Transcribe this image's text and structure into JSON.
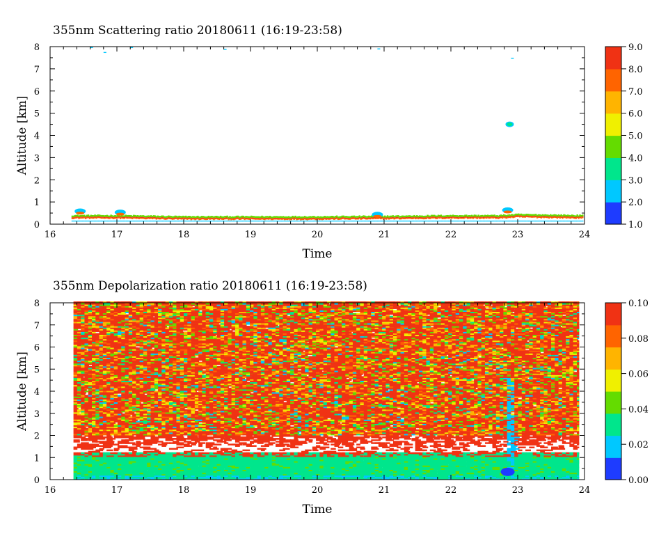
{
  "chart_data": [
    {
      "type": "heatmap",
      "title": "355nm Scattering ratio  20180611 (16:19-23:58)",
      "xlabel": "Time",
      "ylabel": "Altitude [km]",
      "xlim": [
        16,
        24
      ],
      "ylim": [
        0,
        8
      ],
      "x_ticks": [
        "16",
        "17",
        "18",
        "19",
        "20",
        "21",
        "22",
        "23",
        "24"
      ],
      "y_ticks": [
        "0",
        "1",
        "2",
        "3",
        "4",
        "5",
        "6",
        "7",
        "8"
      ],
      "colorbar": {
        "min": 1.0,
        "max": 9.0,
        "tick_labels": [
          "1.0",
          "2.0",
          "3.0",
          "4.0",
          "5.0",
          "6.0",
          "7.0",
          "8.0",
          "9.0"
        ],
        "colors": [
          "#1e3cff",
          "#00c8ff",
          "#00e68c",
          "#64dc00",
          "#f0f000",
          "#ffb400",
          "#ff6400",
          "#f03214"
        ]
      },
      "data_extent_hours": [
        16.32,
        23.97
      ],
      "features": [
        {
          "name": "boundary-layer top",
          "x": [
            16.35,
            17.0,
            18.0,
            19.0,
            20.0,
            21.0,
            22.0,
            22.7,
            23.0,
            23.97
          ],
          "altitude_km": [
            0.35,
            0.35,
            0.3,
            0.3,
            0.3,
            0.32,
            0.35,
            0.35,
            0.4,
            0.35
          ],
          "ratio": 8.0
        },
        {
          "name": "cloud",
          "hours": 22.88,
          "altitude_km": 4.5,
          "ratio": 3.0
        }
      ]
    },
    {
      "type": "heatmap",
      "title": "355nm Depolarization ratio  20180611 (16:19-23:58)",
      "xlabel": "Time",
      "ylabel": "Altitude [km]",
      "xlim": [
        16,
        24
      ],
      "ylim": [
        0,
        8
      ],
      "x_ticks": [
        "16",
        "17",
        "18",
        "19",
        "20",
        "21",
        "22",
        "23",
        "24"
      ],
      "y_ticks": [
        "0",
        "1",
        "2",
        "3",
        "4",
        "5",
        "6",
        "7",
        "8"
      ],
      "colorbar": {
        "min": 0.0,
        "max": 0.1,
        "tick_labels": [
          "0.00",
          "0.02",
          "0.04",
          "0.06",
          "0.08",
          "0.10"
        ],
        "colors": [
          "#1e3cff",
          "#00c8ff",
          "#00e68c",
          "#64dc00",
          "#f0f000",
          "#ffb400",
          "#ff6400",
          "#f03214"
        ]
      },
      "data_extent_hours": [
        16.35,
        23.92
      ],
      "layers": [
        {
          "name": "boundary layer",
          "altitude_km": [
            0.0,
            1.2
          ],
          "ratio": 0.03
        },
        {
          "name": "gap",
          "altitude_km": [
            1.2,
            2.0
          ],
          "ratio": null
        },
        {
          "name": "free troposphere",
          "altitude_km": [
            2.0,
            8.0
          ],
          "ratio": 0.09
        }
      ],
      "features": [
        {
          "name": "cloud",
          "hours": 22.85,
          "altitude_km": [
            0.5,
            4.6
          ],
          "ratio": 0.02
        }
      ]
    }
  ]
}
